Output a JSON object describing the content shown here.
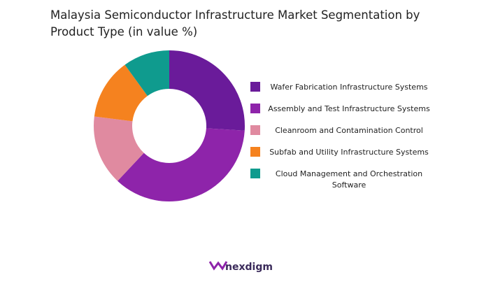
{
  "chart_data": {
    "type": "donut",
    "title": "Malaysia Semiconductor Infrastructure Market Segmentation by Product Type (in value %)",
    "categories": [
      "Wafer Fabrication Infrastructure Systems",
      "Assembly and Test Infrastructure Systems",
      "Cleanroom and Contamination Control",
      "Subfab and Utility Infrastructure Systems",
      "Cloud Management and Orchestration Software"
    ],
    "values": [
      26,
      36,
      15,
      13,
      10
    ],
    "colors": [
      "#6a1b9a",
      "#8e24aa",
      "#e08aa0",
      "#f5821f",
      "#0f9b8e"
    ],
    "legend": "right"
  },
  "brand": "nexdigm"
}
